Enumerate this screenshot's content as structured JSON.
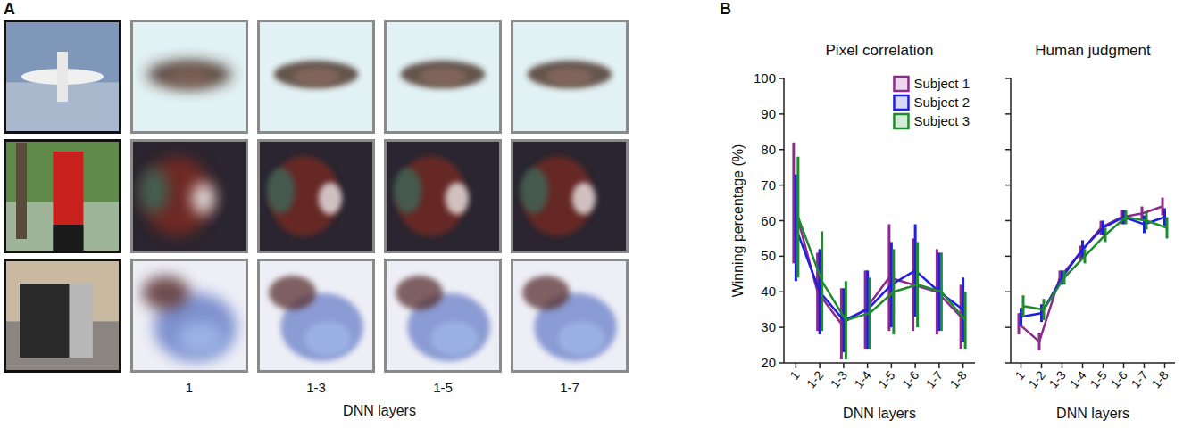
{
  "panel_a": {
    "label": "A",
    "columns": [
      "1",
      "1-3",
      "1-5",
      "1-7"
    ],
    "axis_label": "DNN layers"
  },
  "panel_b": {
    "label": "B"
  },
  "chart_data": [
    {
      "type": "line",
      "title": "Pixel correlation",
      "x_label": "DNN layers",
      "y_label": "Winning percentage (%)",
      "categories": [
        "1",
        "1-2",
        "1-3",
        "1-4",
        "1-5",
        "1-6",
        "1-7",
        "1-8"
      ],
      "ylim": [
        20,
        100
      ],
      "yticks": [
        20,
        30,
        40,
        50,
        60,
        70,
        80,
        90,
        100
      ],
      "legend": "upper right",
      "series": [
        {
          "name": "Subject 1",
          "color": "#8e2a8e",
          "values": [
            65,
            40,
            31,
            35,
            44,
            42,
            40,
            33
          ],
          "errors": [
            17,
            11,
            10,
            11,
            15,
            13,
            12,
            9
          ]
        },
        {
          "name": "Subject 2",
          "color": "#1f1fe0",
          "values": [
            58,
            40,
            32,
            35,
            42,
            46,
            40,
            35
          ],
          "errors": [
            15,
            12,
            9,
            11,
            12,
            13,
            11,
            9
          ]
        },
        {
          "name": "Subject 3",
          "color": "#1e8c2e",
          "values": [
            61,
            43,
            32,
            34,
            40,
            42,
            40,
            32
          ],
          "errors": [
            17,
            14,
            11,
            10,
            12,
            12,
            11,
            8
          ]
        }
      ]
    },
    {
      "type": "line",
      "title": "Human judgment",
      "x_label": "DNN layers",
      "tick_labels": "x",
      "categories": [
        "1",
        "1-2",
        "1-3",
        "1-4",
        "1-5",
        "1-6",
        "1-7",
        "1-8"
      ],
      "ylim": [
        20,
        100
      ],
      "yticks": [
        20,
        30,
        40,
        50,
        60,
        70,
        80,
        90,
        100
      ],
      "series": [
        {
          "color": "#8e2a8e",
          "values": [
            31,
            26,
            44,
            51,
            58,
            61,
            62,
            64
          ],
          "errors": [
            3,
            2.5,
            2,
            2,
            2,
            2,
            2,
            2.5
          ]
        },
        {
          "color": "#1f1fe0",
          "values": [
            33,
            34,
            44,
            52,
            58,
            61,
            59,
            61
          ],
          "errors": [
            2.5,
            2.5,
            2,
            2.5,
            2,
            2,
            2.5,
            2.5
          ]
        },
        {
          "color": "#1e8c2e",
          "values": [
            36,
            35,
            44,
            50,
            56,
            61,
            60,
            58
          ],
          "errors": [
            3,
            3,
            2,
            2,
            2,
            2,
            2.5,
            3
          ]
        }
      ]
    }
  ]
}
